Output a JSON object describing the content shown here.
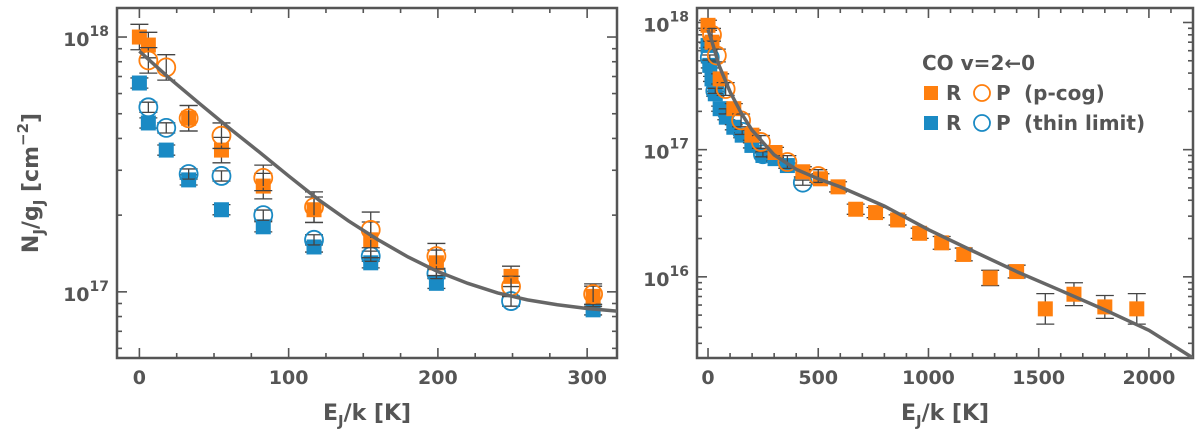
{
  "chart_data": [
    {
      "type": "scatter",
      "panel": "left",
      "xlabel": "E_J/k  [K]",
      "ylabel": "N_J/g_J  [cm^-2]",
      "xlim": [
        -15,
        320
      ],
      "ylim": [
        5.5e+16,
        1.3e+18
      ],
      "yscale": "log",
      "xticks": [
        0,
        100,
        200,
        300
      ],
      "xtick_labels": [
        "0",
        "100",
        "200",
        "300"
      ],
      "yticks": [
        1e+17,
        1e+18
      ],
      "ytick_labels": [
        {
          "mant": "10",
          "exp": "17"
        },
        {
          "mant": "10",
          "exp": "18"
        }
      ],
      "series": [
        {
          "name": "R (p-cog)",
          "marker": "square",
          "filled": true,
          "color": "#ff7f0e",
          "x": [
            0,
            6,
            33,
            55,
            83,
            117,
            155,
            199,
            249,
            304
          ],
          "y": [
            1e+18,
            9.3e+17,
            4.8e+17,
            3.6e+17,
            2.6e+17,
            2.1e+17,
            1.6e+17,
            1.3e+17,
            1.15e+17,
            9.6e+16
          ],
          "err": [
            0.05,
            0.05,
            0.05,
            0.05,
            0.05,
            0.05,
            0.07,
            0.05,
            0.04,
            0.04
          ]
        },
        {
          "name": "P (p-cog)",
          "marker": "circle",
          "filled": false,
          "color": "#ff7f0e",
          "x": [
            6,
            18,
            33,
            55,
            83,
            117,
            155,
            199,
            249,
            304
          ],
          "y": [
            8.1e+17,
            7.6e+17,
            4.8e+17,
            4.1e+17,
            2.8e+17,
            2.15e+17,
            1.75e+17,
            1.38e+17,
            1.05e+17,
            9.8e+16
          ],
          "err": [
            0.05,
            0.05,
            0.05,
            0.05,
            0.05,
            0.06,
            0.07,
            0.05,
            0.04,
            0.04
          ]
        },
        {
          "name": "R (thin limit)",
          "marker": "square",
          "filled": true,
          "color": "#1a8ac4",
          "x": [
            0,
            6,
            18,
            33,
            55,
            83,
            117,
            155,
            199,
            304
          ],
          "y": [
            6.6e+17,
            4.6e+17,
            3.6e+17,
            2.75e+17,
            2.1e+17,
            1.8e+17,
            1.5e+17,
            1.3e+17,
            1.08e+17,
            8.5e+16
          ],
          "err": [
            0.02,
            0.02,
            0.02,
            0.02,
            0.02,
            0.02,
            0.02,
            0.02,
            0.02,
            0.02
          ]
        },
        {
          "name": "P (thin limit)",
          "marker": "circle",
          "filled": false,
          "color": "#1a8ac4",
          "x": [
            6,
            18,
            33,
            55,
            83,
            117,
            155,
            199,
            249
          ],
          "y": [
            5.3e+17,
            4.4e+17,
            2.9e+17,
            2.85e+17,
            2e+17,
            1.6e+17,
            1.38e+17,
            1.18e+17,
            9.2e+16
          ],
          "err": [
            0.02,
            0.02,
            0.02,
            0.02,
            0.02,
            0.02,
            0.02,
            0.02,
            0.02
          ]
        }
      ],
      "model": {
        "name": "fit",
        "color": "#666666",
        "x": [
          0,
          20,
          40,
          60,
          80,
          100,
          120,
          140,
          160,
          180,
          200,
          220,
          240,
          260,
          280,
          300,
          320
        ],
        "y": [
          8.8e+17,
          6.9e+17,
          5.5e+17,
          4.4e+17,
          3.55e+17,
          2.85e+17,
          2.3e+17,
          1.9e+17,
          1.6e+17,
          1.37e+17,
          1.2e+17,
          1.08e+17,
          9.9e+16,
          9.3e+16,
          8.9e+16,
          8.6e+16,
          8.4e+16
        ]
      }
    },
    {
      "type": "scatter",
      "panel": "right",
      "xlabel": "E_J/k  [K]",
      "ylabel": "",
      "xlim": [
        -50,
        2200
      ],
      "ylim": [
        2300000000000000.0,
        1.3e+18
      ],
      "yscale": "log",
      "xticks": [
        0,
        500,
        1000,
        1500,
        2000
      ],
      "xtick_labels": [
        "0",
        "500",
        "1000",
        "1500",
        "2000"
      ],
      "yticks": [
        1e+16,
        1e+17,
        1e+18
      ],
      "ytick_labels": [
        {
          "mant": "10",
          "exp": "16"
        },
        {
          "mant": "10",
          "exp": "17"
        },
        {
          "mant": "10",
          "exp": "18"
        }
      ],
      "legend": {
        "title": "CO  v=2←0",
        "position": "top-right",
        "entries": [
          {
            "r": "R",
            "p": "P",
            "label": "(p-cog)",
            "color": "#ff7f0e"
          },
          {
            "r": "R",
            "p": "P",
            "label": "(thin limit)",
            "color": "#1a8ac4"
          }
        ]
      },
      "series": [
        {
          "name": "R (p-cog)",
          "marker": "square",
          "filled": true,
          "color": "#ff7f0e",
          "x": [
            0,
            18,
            55,
            117,
            199,
            304,
            430,
            510,
            590,
            670,
            760,
            860,
            960,
            1060,
            1160,
            1280,
            1400,
            1530,
            1660,
            1800,
            1945
          ],
          "y": [
            9.5e+17,
            7e+17,
            3.6e+17,
            2.1e+17,
            1.3e+17,
            9.5e+16,
            6.7e+16,
            5.9e+16,
            5.1e+16,
            3.4e+16,
            3.2e+16,
            2.8e+16,
            2.2e+16,
            1.85e+16,
            1.5e+16,
            9800000000000000.0,
            1.1e+16,
            5600000000000000.0,
            7300000000000000.0,
            5800000000000000.0,
            5600000000000000.0
          ],
          "err": [
            0.04,
            0.04,
            0.04,
            0.04,
            0.04,
            0.04,
            0.04,
            0.04,
            0.04,
            0.04,
            0.04,
            0.04,
            0.04,
            0.05,
            0.05,
            0.06,
            0.05,
            0.12,
            0.09,
            0.09,
            0.12
          ]
        },
        {
          "name": "P (p-cog)",
          "marker": "circle",
          "filled": false,
          "color": "#ff7f0e",
          "x": [
            18,
            40,
            80,
            150,
            240,
            360,
            500
          ],
          "y": [
            8e+17,
            5.5e+17,
            3e+17,
            1.7e+17,
            1.15e+17,
            8e+16,
            6.2e+16
          ],
          "err": [
            0.05,
            0.05,
            0.05,
            0.05,
            0.05,
            0.05,
            0.05
          ]
        },
        {
          "name": "R (thin limit)",
          "marker": "square",
          "filled": true,
          "color": "#1a8ac4",
          "x": [
            0,
            8,
            18,
            33,
            55,
            83,
            117,
            155,
            199,
            249,
            304,
            360
          ],
          "y": [
            6.6e+17,
            4.6e+17,
            3.6e+17,
            2.75e+17,
            2.1e+17,
            1.8e+17,
            1.5e+17,
            1.3e+17,
            1.08e+17,
            9e+16,
            8.5e+16,
            7.5e+16
          ],
          "err": [
            0.02,
            0.02,
            0.02,
            0.02,
            0.02,
            0.02,
            0.02,
            0.02,
            0.02,
            0.02,
            0.02,
            0.02
          ]
        },
        {
          "name": "P (thin limit)",
          "marker": "circle",
          "filled": false,
          "color": "#1a8ac4",
          "x": [
            8,
            33,
            83,
            155,
            249,
            430
          ],
          "y": [
            5.3e+17,
            2.9e+17,
            2e+17,
            1.38e+17,
            9.2e+16,
            5.5e+16
          ],
          "err": [
            0.02,
            0.02,
            0.02,
            0.02,
            0.02,
            0.02
          ]
        }
      ],
      "model": {
        "name": "fit",
        "color": "#666666",
        "x": [
          0,
          20,
          50,
          100,
          150,
          200,
          300,
          400,
          500,
          600,
          800,
          1000,
          1200,
          1400,
          1600,
          1800,
          2000,
          2200
        ],
        "y": [
          8.8e+17,
          6.9e+17,
          4.6e+17,
          2.85e+17,
          1.95e+17,
          1.42e+17,
          9.1e+16,
          7e+16,
          5.9e+16,
          5.1e+16,
          3.6e+16,
          2.35e+16,
          1.6e+16,
          1.1e+16,
          7800000000000000.0,
          5500000000000000.0,
          3800000000000000.0,
          2300000000000000.0
        ]
      }
    }
  ]
}
